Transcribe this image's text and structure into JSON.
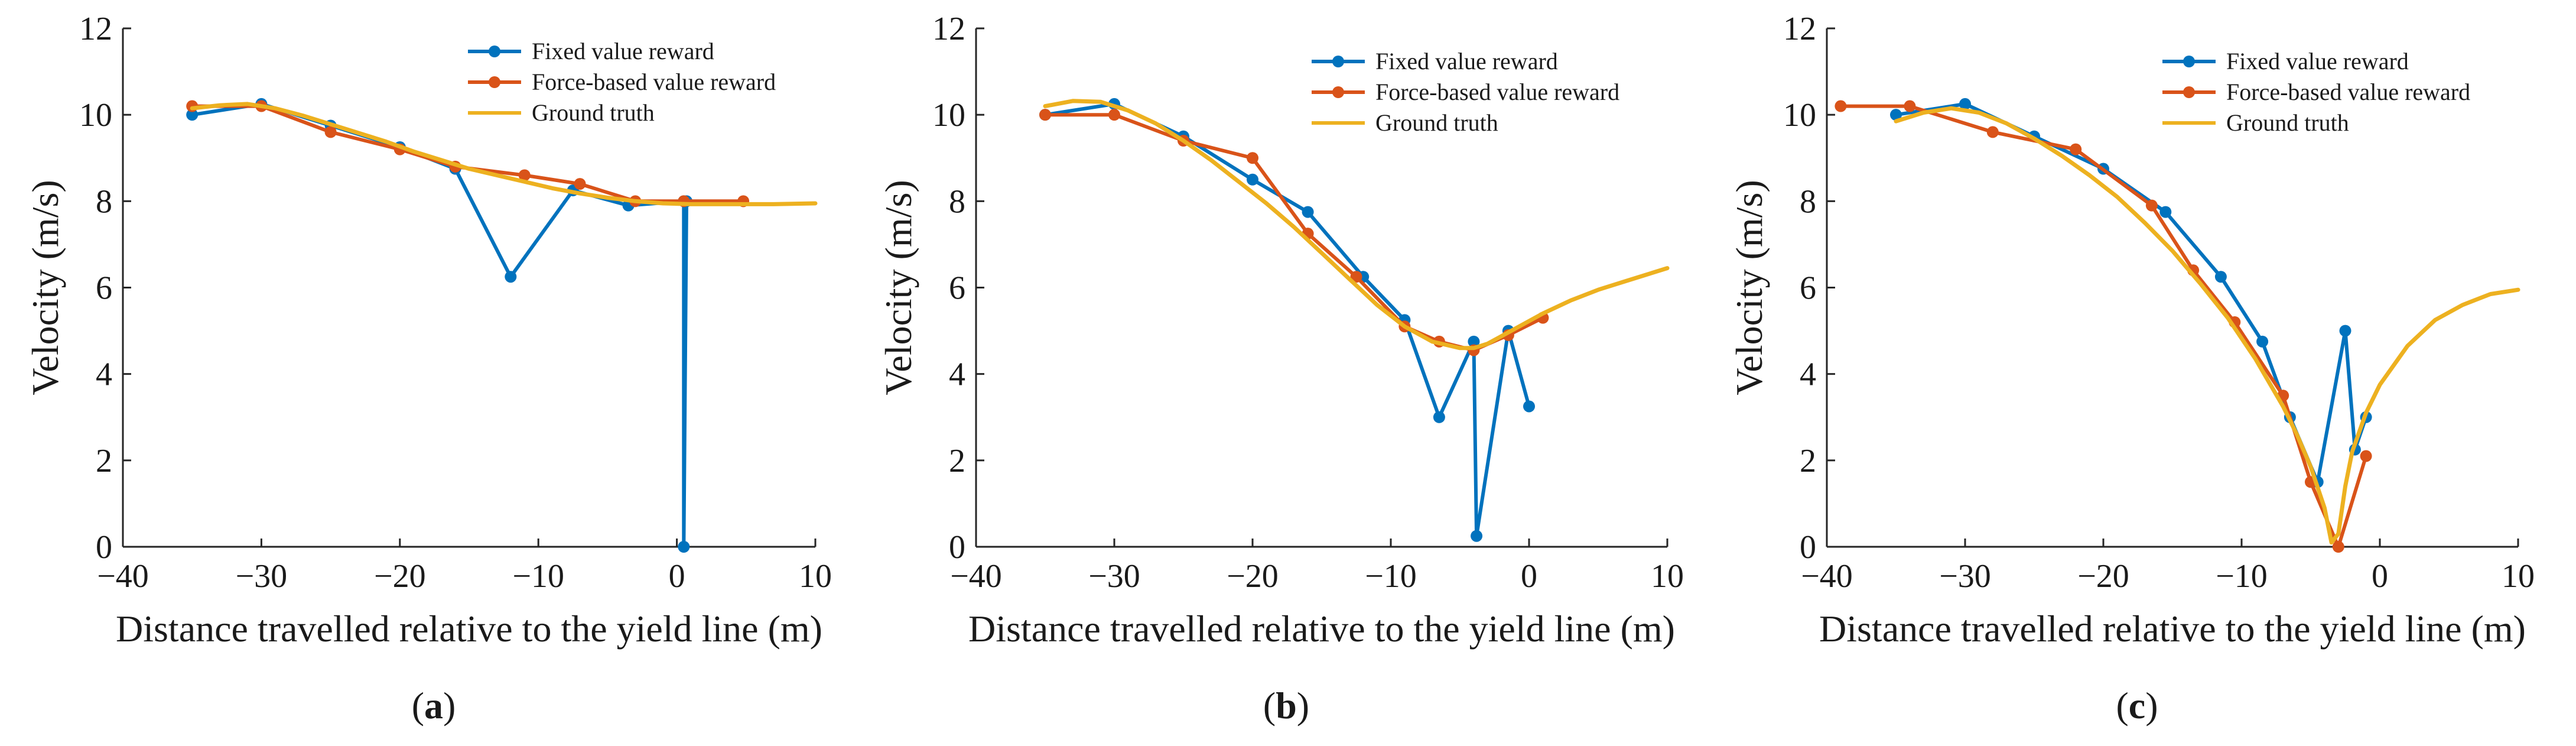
{
  "colors": {
    "fixed": "#0072BD",
    "force": "#D95319",
    "truth": "#EDB120",
    "axis": "#262626"
  },
  "legend": [
    "Fixed value reward",
    "Force-based value reward",
    "Ground truth"
  ],
  "chart_data": [
    {
      "type": "line",
      "caption": "(a)",
      "xlabel": "Distance travelled relative to the yield line (m)",
      "ylabel": "Velocity (m/s)",
      "xlim": [
        -40,
        10
      ],
      "ylim": [
        0,
        12
      ],
      "xticks": [
        -40,
        -30,
        -20,
        -10,
        0,
        10
      ],
      "yticks": [
        0,
        2,
        4,
        6,
        8,
        10,
        12
      ],
      "series": [
        {
          "name": "Fixed value reward",
          "color": "fixed",
          "markers": true,
          "x": [
            -35,
            -30,
            -25,
            -20,
            -16,
            -12,
            -7.5,
            -3.5,
            0.5,
            0.5,
            0.7
          ],
          "y": [
            10.0,
            10.25,
            9.75,
            9.25,
            8.75,
            6.25,
            8.25,
            7.9,
            8.0,
            0.0,
            8.0
          ]
        },
        {
          "name": "Force-based value reward",
          "color": "force",
          "markers": true,
          "x": [
            -35,
            -30,
            -25,
            -20,
            -16,
            -11,
            -7,
            -3,
            0.5,
            4.8
          ],
          "y": [
            10.2,
            10.2,
            9.6,
            9.2,
            8.8,
            8.6,
            8.4,
            8.0,
            8.0,
            8.0
          ]
        },
        {
          "name": "Ground truth",
          "color": "truth",
          "markers": false,
          "x": [
            -35,
            -33,
            -31,
            -29,
            -27,
            -25,
            -23,
            -21,
            -19,
            -17,
            -15,
            -13,
            -11,
            -9,
            -7,
            -5,
            -3,
            -1,
            1,
            3,
            5,
            7,
            10
          ],
          "y": [
            10.15,
            10.22,
            10.25,
            10.15,
            9.98,
            9.78,
            9.58,
            9.38,
            9.15,
            8.95,
            8.75,
            8.6,
            8.45,
            8.3,
            8.18,
            8.08,
            8.0,
            7.95,
            7.93,
            7.93,
            7.93,
            7.93,
            7.95
          ]
        }
      ]
    },
    {
      "type": "line",
      "caption": "(b)",
      "xlabel": "Distance travelled relative to the yield line (m)",
      "ylabel": "Velocity (m/s)",
      "xlim": [
        -40,
        10
      ],
      "ylim": [
        0,
        12
      ],
      "xticks": [
        -40,
        -30,
        -20,
        -10,
        0,
        10
      ],
      "yticks": [
        0,
        2,
        4,
        6,
        8,
        10,
        12
      ],
      "series": [
        {
          "name": "Fixed value reward",
          "color": "fixed",
          "markers": true,
          "x": [
            -35,
            -30,
            -25,
            -20,
            -16,
            -12,
            -9,
            -6.5,
            -4,
            -3.8,
            -1.5,
            0
          ],
          "y": [
            10.0,
            10.25,
            9.5,
            8.5,
            7.75,
            6.25,
            5.25,
            3.0,
            4.75,
            0.25,
            5.0,
            3.25
          ]
        },
        {
          "name": "Force-based value reward",
          "color": "force",
          "markers": true,
          "x": [
            -35,
            -30,
            -25,
            -20,
            -16,
            -12.5,
            -9,
            -6.5,
            -4,
            -1.5,
            1
          ],
          "y": [
            10.0,
            10.0,
            9.4,
            9.0,
            7.25,
            6.25,
            5.1,
            4.75,
            4.55,
            4.9,
            5.3
          ]
        },
        {
          "name": "Ground truth",
          "color": "truth",
          "markers": false,
          "x": [
            -35,
            -33,
            -31,
            -29,
            -27,
            -25,
            -23,
            -21,
            -19,
            -17,
            -15,
            -13,
            -11,
            -9,
            -7,
            -5,
            -4,
            -3,
            -1,
            1,
            3,
            5,
            7,
            10
          ],
          "y": [
            10.2,
            10.32,
            10.3,
            10.1,
            9.8,
            9.4,
            8.95,
            8.45,
            7.95,
            7.4,
            6.8,
            6.2,
            5.6,
            5.1,
            4.75,
            4.6,
            4.6,
            4.7,
            5.05,
            5.4,
            5.7,
            5.95,
            6.15,
            6.45
          ]
        }
      ]
    },
    {
      "type": "line",
      "caption": "(c)",
      "xlabel": "Distance travelled relative to the yield line (m)",
      "ylabel": "Velocity (m/s)",
      "xlim": [
        -40,
        10
      ],
      "ylim": [
        0,
        12
      ],
      "xticks": [
        -40,
        -30,
        -20,
        -10,
        0,
        10
      ],
      "yticks": [
        0,
        2,
        4,
        6,
        8,
        10,
        12
      ],
      "series": [
        {
          "name": "Fixed value reward",
          "color": "fixed",
          "markers": true,
          "x": [
            -35,
            -30,
            -25,
            -20,
            -15.5,
            -11.5,
            -8.5,
            -6.5,
            -4.5,
            -2.5,
            -1.8,
            -1
          ],
          "y": [
            10.0,
            10.25,
            9.5,
            8.75,
            7.75,
            6.25,
            4.75,
            3.0,
            1.5,
            5.0,
            2.25,
            3.0
          ]
        },
        {
          "name": "Force-based value reward",
          "color": "force",
          "markers": true,
          "x": [
            -39,
            -34,
            -28,
            -22,
            -16.5,
            -13.5,
            -10.5,
            -7,
            -5,
            -3,
            -1
          ],
          "y": [
            10.2,
            10.2,
            9.6,
            9.2,
            7.9,
            6.4,
            5.2,
            3.5,
            1.5,
            0.0,
            2.1
          ]
        },
        {
          "name": "Ground truth",
          "color": "truth",
          "markers": false,
          "x": [
            -35,
            -33,
            -31,
            -29,
            -27,
            -25,
            -23,
            -21,
            -19,
            -17,
            -15,
            -13,
            -11,
            -9,
            -7,
            -6,
            -5,
            -4,
            -3.5,
            -3,
            -2.5,
            -2,
            -1,
            0,
            2,
            4,
            6,
            8,
            10
          ],
          "y": [
            9.85,
            10.05,
            10.15,
            10.05,
            9.8,
            9.45,
            9.05,
            8.6,
            8.1,
            7.5,
            6.85,
            6.1,
            5.3,
            4.35,
            3.25,
            2.6,
            1.85,
            0.9,
            0.1,
            0.3,
            1.4,
            2.2,
            3.1,
            3.75,
            4.65,
            5.25,
            5.6,
            5.85,
            5.95
          ]
        }
      ]
    }
  ]
}
